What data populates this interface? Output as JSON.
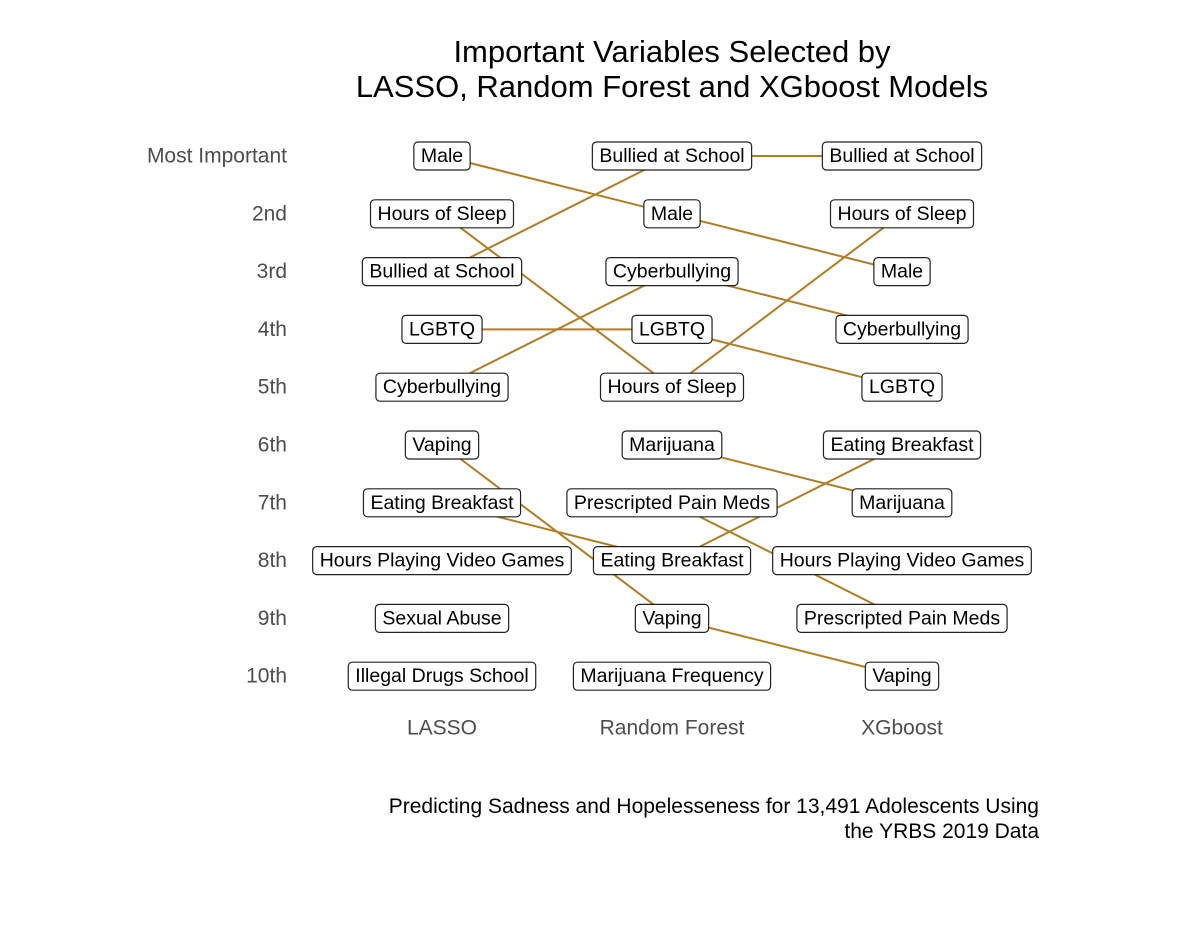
{
  "chart_data": {
    "type": "bump",
    "title_lines": [
      "Important Variables Selected by",
      "LASSO, Random Forest and XGboost Models"
    ],
    "caption_lines": [
      "Predicting Sadness and Hopelesseness for 13,491 Adolescents Using",
      "the YRBS 2019 Data"
    ],
    "ranks": [
      "Most Important",
      "2nd",
      "3rd",
      "4th",
      "5th",
      "6th",
      "7th",
      "8th",
      "9th",
      "10th"
    ],
    "models": [
      {
        "name": "LASSO",
        "variables": [
          "Male",
          "Hours of Sleep",
          "Bullied at School",
          "LGBTQ",
          "Cyberbullying",
          "Vaping",
          "Eating Breakfast",
          "Hours Playing Video Games",
          "Sexual Abuse",
          "Illegal Drugs School"
        ]
      },
      {
        "name": "Random Forest",
        "variables": [
          "Bullied at School",
          "Male",
          "Cyberbullying",
          "LGBTQ",
          "Hours of Sleep",
          "Marijuana",
          "Prescripted Pain Meds",
          "Eating Breakfast",
          "Vaping",
          "Marijuana Frequency"
        ]
      },
      {
        "name": "XGboost",
        "variables": [
          "Bullied at School",
          "Hours of Sleep",
          "Male",
          "Cyberbullying",
          "LGBTQ",
          "Eating Breakfast",
          "Marijuana",
          "Hours Playing Video Games",
          "Prescripted Pain Meds",
          "Vaping"
        ]
      }
    ],
    "line_color": "#b07d24",
    "legend": "none",
    "grid": false
  }
}
